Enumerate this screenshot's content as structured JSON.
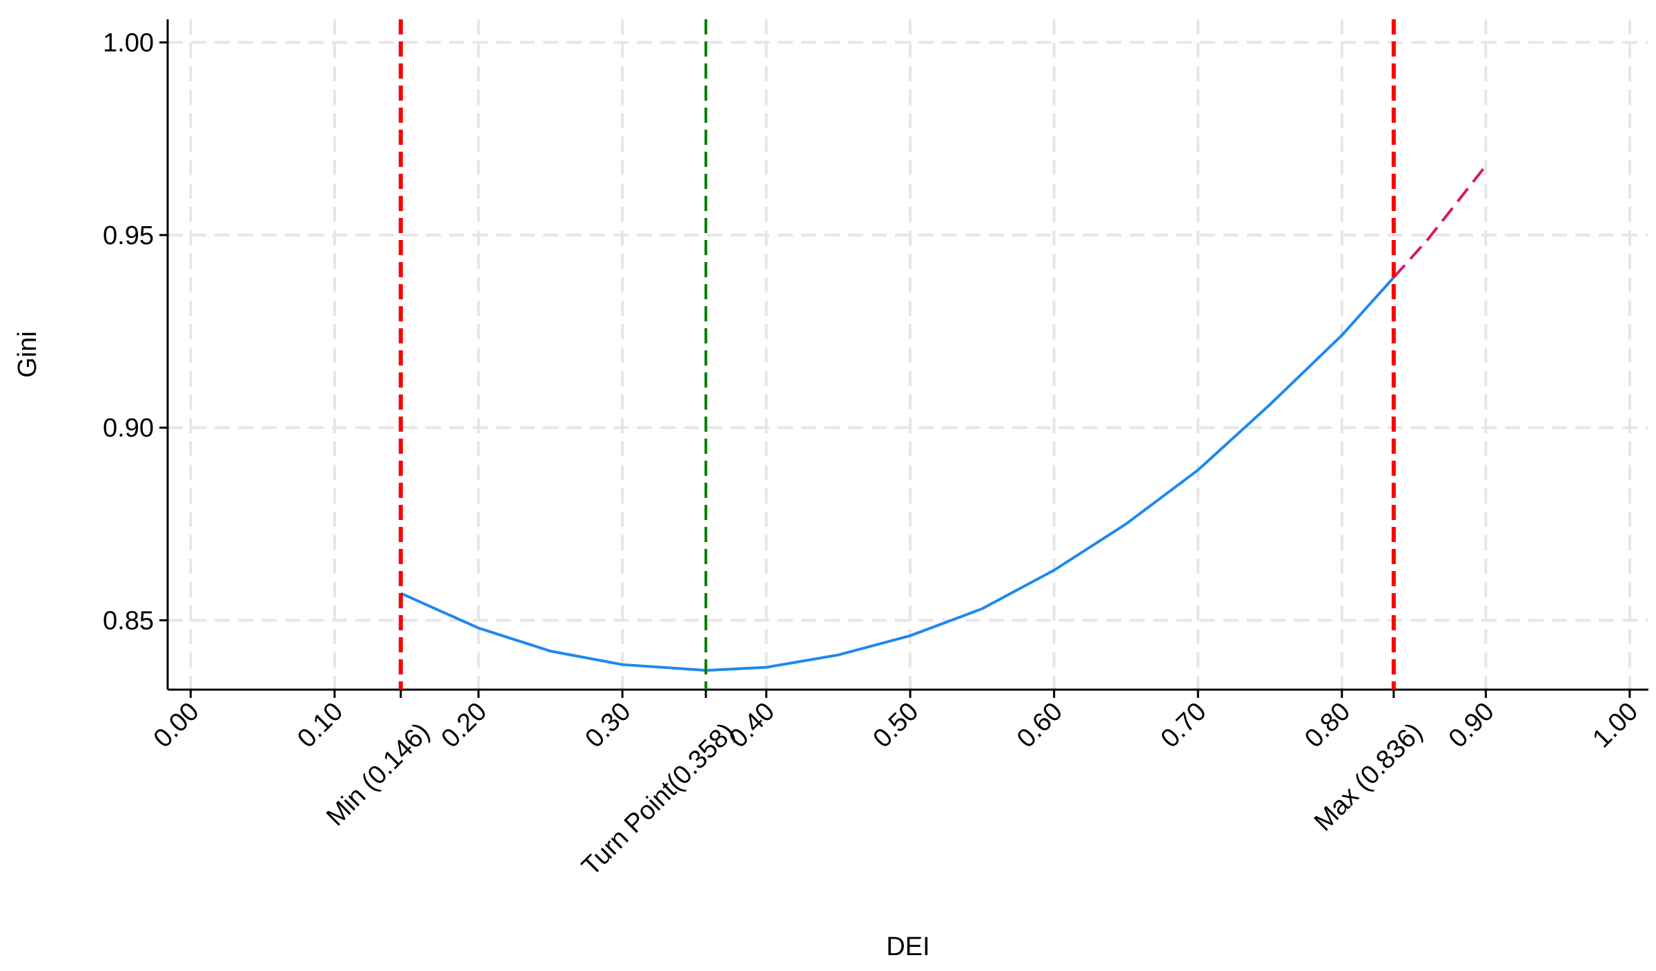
{
  "chart_data": {
    "type": "line",
    "x_label": "DEI",
    "y_label": "Gini",
    "xlim": [
      -0.016,
      1.013
    ],
    "ylim": [
      0.832,
      1.006
    ],
    "xticks": [
      {
        "value": 0,
        "label": "0.00"
      },
      {
        "value": 0.1,
        "label": "0.10"
      },
      {
        "value": 0.2,
        "label": "0.20"
      },
      {
        "value": 0.3,
        "label": "0.30"
      },
      {
        "value": 0.4,
        "label": "0.40"
      },
      {
        "value": 0.5,
        "label": "0.50"
      },
      {
        "value": 0.6,
        "label": "0.60"
      },
      {
        "value": 0.7,
        "label": "0.70"
      },
      {
        "value": 0.8,
        "label": "0.80"
      },
      {
        "value": 0.9,
        "label": "0.90"
      },
      {
        "value": 1,
        "label": "1.00"
      }
    ],
    "yticks": [
      0.85,
      {
        "value": 0.9,
        "label": "0.90"
      },
      0.95,
      {
        "value": 1,
        "label": "1.00"
      }
    ],
    "grid": true,
    "series": [
      {
        "color": "#1e88f0",
        "style": "solid",
        "x": [
          0.146,
          0.2,
          0.25,
          0.3,
          0.358,
          0.4,
          0.45,
          0.5,
          0.55,
          0.6,
          0.65,
          0.7,
          0.75,
          0.8,
          0.836
        ],
        "values": [
          0.857,
          0.848,
          0.842,
          0.8385,
          0.837,
          0.8378,
          0.841,
          0.846,
          0.853,
          0.863,
          0.875,
          0.889,
          0.906,
          0.924,
          0.939
        ]
      },
      {
        "color": "#d81b60",
        "style": "dashed",
        "x": [
          0.836,
          0.86,
          0.9
        ],
        "values": [
          0.939,
          0.949,
          0.968
        ]
      }
    ],
    "vlines": [
      {
        "value": 0.146,
        "label": "Min (0.146)",
        "color": "#ff0000"
      },
      {
        "value": 0.358,
        "label": "Turn Point(0.358)",
        "color": "#008000"
      },
      {
        "value": 0.836,
        "label": "Max (0.836)",
        "color": "#ff0000"
      }
    ]
  }
}
